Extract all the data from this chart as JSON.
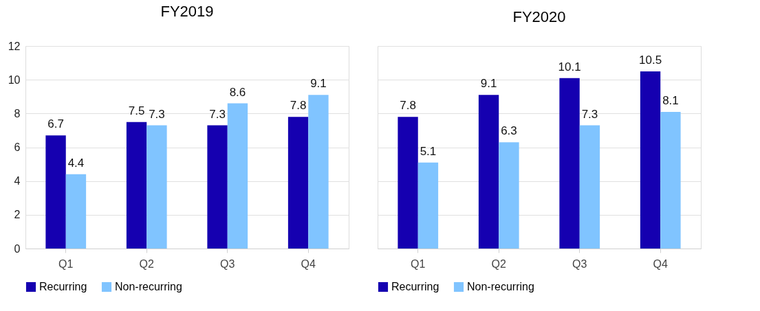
{
  "chart_data": [
    {
      "type": "bar",
      "title": "FY2019",
      "categories": [
        "Q1",
        "Q2",
        "Q3",
        "Q4"
      ],
      "series": [
        {
          "name": "Recurring",
          "color": "#1500b0",
          "values": [
            6.7,
            7.5,
            7.3,
            7.8
          ]
        },
        {
          "name": "Non-recurring",
          "color": "#80c4ff",
          "values": [
            4.4,
            7.3,
            8.6,
            9.1
          ]
        }
      ],
      "ylim": [
        0,
        12
      ],
      "yticks": [
        0,
        2,
        4,
        6,
        8,
        10,
        12
      ],
      "grid": "y",
      "legend": "bottom",
      "data_labels": true
    },
    {
      "type": "bar",
      "title": "FY2020",
      "categories": [
        "Q1",
        "Q2",
        "Q3",
        "Q4"
      ],
      "series": [
        {
          "name": "Recurring",
          "color": "#1500b0",
          "values": [
            7.8,
            9.1,
            10.1,
            10.5
          ]
        },
        {
          "name": "Non-recurring",
          "color": "#80c4ff",
          "values": [
            5.1,
            6.3,
            7.3,
            8.1
          ]
        }
      ],
      "ylim": [
        0,
        12
      ],
      "yticks": [
        0,
        2,
        4,
        6,
        8,
        10,
        12
      ],
      "grid": "y",
      "legend": "bottom",
      "data_labels": true,
      "tick_labels": "x"
    }
  ]
}
